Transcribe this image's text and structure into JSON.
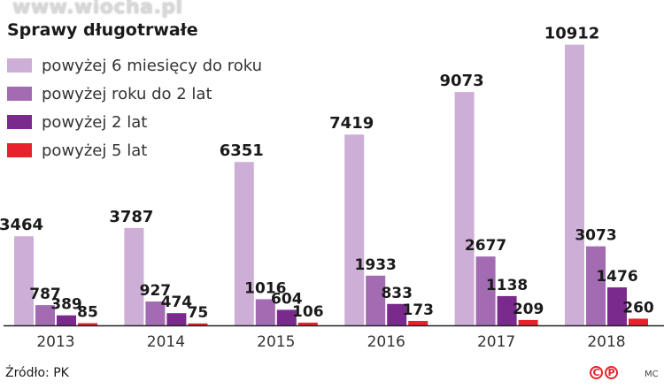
{
  "watermark": "www.wiocha.pl",
  "chart_data": {
    "type": "bar",
    "title": "Sprawy długotrwałe",
    "categories": [
      "2013",
      "2014",
      "2015",
      "2016",
      "2017",
      "2018"
    ],
    "series": [
      {
        "name": "powyżej 6 miesięcy do roku",
        "color": "#cdaed6",
        "values": [
          3464,
          3787,
          6351,
          7419,
          9073,
          10912
        ]
      },
      {
        "name": "powyżej roku do 2 lat",
        "color": "#a36cb2",
        "values": [
          787,
          927,
          1016,
          1933,
          2677,
          3073
        ]
      },
      {
        "name": "powyżej 2 lat",
        "color": "#7a2a8c",
        "values": [
          389,
          474,
          604,
          833,
          1138,
          1476
        ]
      },
      {
        "name": "powyżej 5 lat",
        "color": "#e8212c",
        "values": [
          85,
          75,
          106,
          173,
          209,
          260
        ]
      }
    ],
    "ylim": [
      0,
      11000
    ],
    "grid": false,
    "legend_placement": "top-left"
  },
  "source": "Źródło: PK",
  "logos": [
    "C",
    "P"
  ],
  "credit": "MC"
}
